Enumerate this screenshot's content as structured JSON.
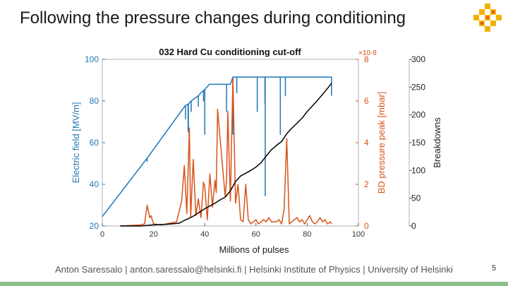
{
  "slide": {
    "title": "Following the pressure changes during conditioning",
    "footer": "Anton Saressalo | anton.saressalo@helsinki.fi | Helsinki Institute of Physics | University of Helsinki",
    "page_number": "5",
    "logo_icon": "university-of-helsinki-flame-logo-icon"
  },
  "chart_data": {
    "type": "line",
    "title": "032 Hard Cu conditioning cut-off",
    "xlabel": "Millions of pulses",
    "xlim": [
      0,
      100
    ],
    "xticks": [
      0,
      20,
      40,
      60,
      80,
      100
    ],
    "axes": {
      "left": {
        "label": "Electric field [MV/m]",
        "lim": [
          20,
          100
        ],
        "ticks": [
          20,
          40,
          60,
          80,
          100
        ],
        "color": "#1f77b4"
      },
      "middle": {
        "label": "BD pressure peak [mbar]",
        "lim": [
          0,
          8
        ],
        "ticks": [
          0,
          2,
          4,
          6,
          8
        ],
        "exponent": "×10-8",
        "color": "#d95319"
      },
      "right": {
        "label": "Breakdowns",
        "lim": [
          0,
          300
        ],
        "ticks": [
          0,
          50,
          100,
          150,
          200,
          250,
          300
        ],
        "color": "#000000"
      }
    },
    "series": [
      {
        "axis": "left",
        "color": "#1f77b4",
        "x": [
          0,
          17.5,
          17.5,
          17.5,
          32.2,
          32.5,
          32.5,
          32.5,
          33.5,
          33.5,
          33.5,
          33.6,
          33.6,
          33.6,
          34.7,
          34.7,
          34.7,
          37.5,
          37.5,
          37.5,
          38.5,
          39.5,
          39.5,
          39.5,
          40,
          40,
          40,
          41.8,
          48.5,
          48.5,
          48.5,
          50,
          51,
          51,
          51,
          51,
          52.5,
          52.5,
          52.5,
          60.5,
          60.5,
          60.5,
          63.5,
          63.5,
          63.5,
          63.6,
          63.6,
          63.6,
          69.5,
          69.5,
          69.5,
          71.5,
          71.5,
          71.5,
          89.5,
          89.5
        ],
        "y": [
          24.5,
          52.5,
          51,
          52.5,
          77.5,
          77.8,
          71.5,
          77.8,
          78.5,
          66,
          78.5,
          78.5,
          65,
          78.5,
          80,
          75,
          80,
          82.5,
          77.5,
          82.5,
          84,
          85,
          80,
          85,
          85.5,
          64,
          85.5,
          88,
          88,
          75,
          88,
          88,
          91.5,
          64,
          91.5,
          91.5,
          91.5,
          84,
          91.5,
          91.5,
          75,
          91.5,
          91.5,
          79,
          91.5,
          91.5,
          34.5,
          91.5,
          91.5,
          64,
          91.5,
          91.5,
          82.5,
          91.5,
          91.5,
          82.5
        ]
      },
      {
        "axis": "middle",
        "color": "#d95319",
        "x": [
          7,
          15,
          16.5,
          17.5,
          18.5,
          19,
          20,
          23,
          29,
          31,
          32,
          33,
          34,
          34.5,
          35.5,
          36.5,
          37.5,
          38.5,
          39.5,
          40,
          41,
          42,
          43,
          44,
          44.5,
          45,
          46,
          47,
          48,
          48.5,
          49,
          50,
          51,
          52,
          53,
          54,
          55,
          56,
          57,
          58,
          59,
          60,
          61,
          62,
          63,
          64,
          65,
          66,
          67,
          68,
          69,
          70,
          71,
          72,
          73,
          74,
          75,
          76,
          77,
          78,
          79,
          80,
          81,
          82,
          83,
          84,
          85,
          86,
          87,
          88,
          89,
          89.5
        ],
        "y": [
          0,
          0.05,
          0.1,
          1,
          0.4,
          0.5,
          0.1,
          0.05,
          0.2,
          1.2,
          2.9,
          0.6,
          4.7,
          0.4,
          3.2,
          0.5,
          1.3,
          0.4,
          2.1,
          1.9,
          0.3,
          2.5,
          0.9,
          2.2,
          1.6,
          5.6,
          4.2,
          2.8,
          1.4,
          2.2,
          5.5,
          1.2,
          7.1,
          1.1,
          2,
          0.3,
          0.2,
          2,
          0.3,
          0.1,
          0.2,
          0.3,
          0.1,
          0.2,
          0.3,
          0.2,
          0.4,
          0.2,
          0.2,
          0.2,
          0.3,
          0.1,
          0.8,
          4.2,
          0.1,
          0.2,
          0.3,
          0.4,
          0.2,
          0.3,
          0.1,
          0.3,
          0.5,
          0.2,
          0.1,
          0.2,
          0.4,
          0.2,
          0.3,
          0.1,
          0.2,
          0.1
        ]
      },
      {
        "axis": "right",
        "color": "#000000",
        "x": [
          7,
          15,
          20,
          25,
          30,
          32,
          34,
          36,
          38,
          40,
          42,
          44,
          46,
          48,
          50,
          52,
          54,
          56,
          58,
          60,
          62,
          64,
          66,
          68,
          70,
          72,
          74,
          76,
          78,
          80,
          82,
          84,
          86,
          88,
          89.5
        ],
        "y": [
          0,
          0,
          2,
          3,
          5,
          10,
          14,
          19,
          25,
          31,
          36,
          41,
          47,
          52,
          63,
          80,
          90,
          95,
          100,
          106,
          114,
          126,
          137,
          145,
          152,
          166,
          176,
          185,
          194,
          206,
          216,
          226,
          237,
          248,
          257
        ]
      }
    ]
  }
}
